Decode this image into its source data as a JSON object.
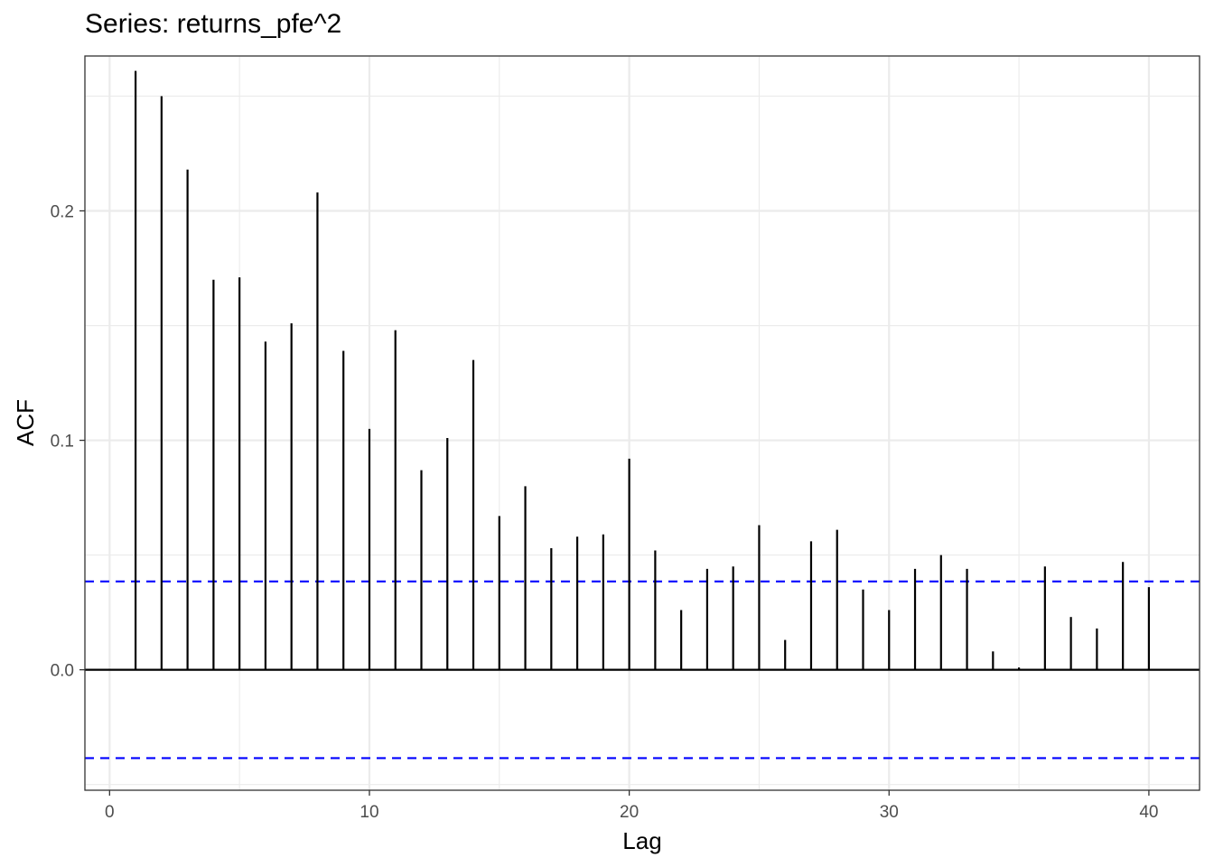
{
  "chart_data": {
    "type": "bar",
    "title": "Series: returns_pfe^2",
    "xlabel": "Lag",
    "ylabel": "ACF",
    "xlim": [
      -0.95,
      41.95
    ],
    "ylim": [
      -0.0525,
      0.2675
    ],
    "x_ticks": [
      "0",
      "10",
      "20",
      "30",
      "40"
    ],
    "y_ticks": [
      "0.0",
      "0.1",
      "0.2"
    ],
    "grid": true,
    "confidence_bound": 0.0385,
    "lags": [
      1,
      2,
      3,
      4,
      5,
      6,
      7,
      8,
      9,
      10,
      11,
      12,
      13,
      14,
      15,
      16,
      17,
      18,
      19,
      20,
      21,
      22,
      23,
      24,
      25,
      26,
      27,
      28,
      29,
      30,
      31,
      32,
      33,
      34,
      35,
      36,
      37,
      38,
      39,
      40
    ],
    "acf": [
      0.261,
      0.25,
      0.218,
      0.17,
      0.171,
      0.143,
      0.151,
      0.208,
      0.139,
      0.105,
      0.148,
      0.087,
      0.101,
      0.135,
      0.067,
      0.08,
      0.053,
      0.058,
      0.059,
      0.092,
      0.052,
      0.026,
      0.044,
      0.045,
      0.063,
      0.013,
      0.056,
      0.061,
      0.035,
      0.026,
      0.044,
      0.05,
      0.044,
      0.008,
      0.001,
      0.045,
      0.023,
      0.018,
      0.047,
      0.036
    ],
    "colors": {
      "stem": "#000000",
      "bound": "#0000ff",
      "grid": "#ebebeb"
    }
  }
}
